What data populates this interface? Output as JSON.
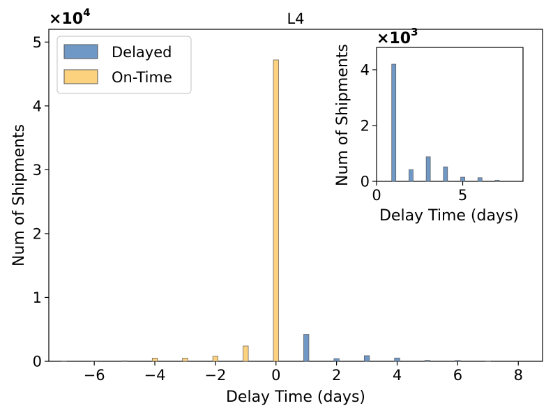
{
  "colors": {
    "delayed": "#6f98c6",
    "on_time": "#fdd27f",
    "edge": "#555555"
  },
  "chart_data": [
    {
      "type": "bar",
      "title": "L4",
      "xlabel": "Delay Time (days)",
      "ylabel": "Num of Shipments",
      "y_multiplier_label": "×10",
      "y_multiplier_exp": "4",
      "xlim": [
        -7.5,
        8.8
      ],
      "ylim": [
        0,
        52000
      ],
      "xticks": [
        -6,
        -4,
        -2,
        0,
        2,
        4,
        6,
        8
      ],
      "xtick_labels": [
        "−6",
        "−4",
        "−2",
        "0",
        "2",
        "4",
        "6",
        "8"
      ],
      "yticks": [
        0,
        10000,
        20000,
        30000,
        40000,
        50000
      ],
      "ytick_labels": [
        "0",
        "1",
        "2",
        "3",
        "4",
        "5"
      ],
      "legend": {
        "placement": "top-left",
        "entries": [
          "Delayed",
          "On-Time"
        ]
      },
      "series": [
        {
          "name": "Delayed",
          "x": [
            1,
            2,
            3,
            4,
            5,
            6,
            7
          ],
          "values": [
            4200,
            420,
            880,
            520,
            150,
            130,
            40
          ]
        },
        {
          "name": "On-Time",
          "x": [
            -7,
            -6,
            -5,
            -4,
            -3,
            -2,
            -1,
            0
          ],
          "values": [
            40,
            60,
            80,
            500,
            500,
            800,
            2400,
            47200
          ]
        }
      ]
    },
    {
      "type": "bar",
      "title": "",
      "xlabel": "Delay Time (days)",
      "ylabel": "Num of Shipments",
      "y_multiplier_label": "×10",
      "y_multiplier_exp": "3",
      "xlim": [
        0,
        8.5
      ],
      "ylim": [
        0,
        4800
      ],
      "xticks": [
        0,
        5
      ],
      "xtick_labels": [
        "0",
        "5"
      ],
      "yticks": [
        0,
        2000,
        4000
      ],
      "ytick_labels": [
        "0",
        "2",
        "4"
      ],
      "series": [
        {
          "name": "Delayed",
          "x": [
            1,
            2,
            3,
            4,
            5,
            6,
            7
          ],
          "values": [
            4200,
            420,
            880,
            520,
            150,
            130,
            40
          ]
        }
      ]
    }
  ]
}
